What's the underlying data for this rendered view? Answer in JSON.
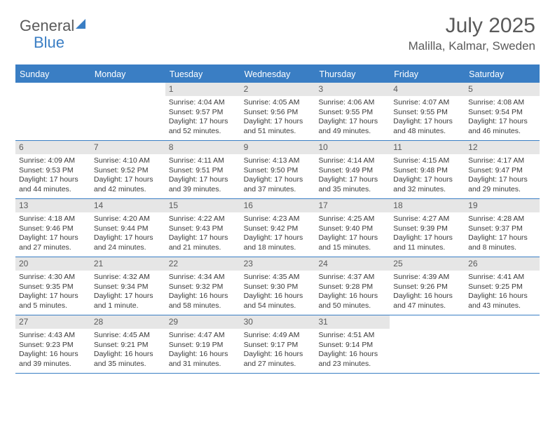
{
  "brand": {
    "part1": "General",
    "part2": "Blue"
  },
  "title": "July 2025",
  "location": "Malilla, Kalmar, Sweden",
  "colors": {
    "accent": "#3a7ec4",
    "header_text": "#ffffff",
    "daynum_bg": "#e6e6e6",
    "body_text": "#3a3a3a",
    "muted_text": "#5a5a5a",
    "background": "#ffffff"
  },
  "fonts": {
    "title_size_pt": 22,
    "location_size_pt": 13,
    "dayhead_size_pt": 9,
    "cell_size_pt": 8
  },
  "day_headers": [
    "Sunday",
    "Monday",
    "Tuesday",
    "Wednesday",
    "Thursday",
    "Friday",
    "Saturday"
  ],
  "weeks": [
    [
      {
        "n": "",
        "sr": "",
        "ss": "",
        "dl": ""
      },
      {
        "n": "",
        "sr": "",
        "ss": "",
        "dl": ""
      },
      {
        "n": "1",
        "sr": "Sunrise: 4:04 AM",
        "ss": "Sunset: 9:57 PM",
        "dl": "Daylight: 17 hours and 52 minutes."
      },
      {
        "n": "2",
        "sr": "Sunrise: 4:05 AM",
        "ss": "Sunset: 9:56 PM",
        "dl": "Daylight: 17 hours and 51 minutes."
      },
      {
        "n": "3",
        "sr": "Sunrise: 4:06 AM",
        "ss": "Sunset: 9:55 PM",
        "dl": "Daylight: 17 hours and 49 minutes."
      },
      {
        "n": "4",
        "sr": "Sunrise: 4:07 AM",
        "ss": "Sunset: 9:55 PM",
        "dl": "Daylight: 17 hours and 48 minutes."
      },
      {
        "n": "5",
        "sr": "Sunrise: 4:08 AM",
        "ss": "Sunset: 9:54 PM",
        "dl": "Daylight: 17 hours and 46 minutes."
      }
    ],
    [
      {
        "n": "6",
        "sr": "Sunrise: 4:09 AM",
        "ss": "Sunset: 9:53 PM",
        "dl": "Daylight: 17 hours and 44 minutes."
      },
      {
        "n": "7",
        "sr": "Sunrise: 4:10 AM",
        "ss": "Sunset: 9:52 PM",
        "dl": "Daylight: 17 hours and 42 minutes."
      },
      {
        "n": "8",
        "sr": "Sunrise: 4:11 AM",
        "ss": "Sunset: 9:51 PM",
        "dl": "Daylight: 17 hours and 39 minutes."
      },
      {
        "n": "9",
        "sr": "Sunrise: 4:13 AM",
        "ss": "Sunset: 9:50 PM",
        "dl": "Daylight: 17 hours and 37 minutes."
      },
      {
        "n": "10",
        "sr": "Sunrise: 4:14 AM",
        "ss": "Sunset: 9:49 PM",
        "dl": "Daylight: 17 hours and 35 minutes."
      },
      {
        "n": "11",
        "sr": "Sunrise: 4:15 AM",
        "ss": "Sunset: 9:48 PM",
        "dl": "Daylight: 17 hours and 32 minutes."
      },
      {
        "n": "12",
        "sr": "Sunrise: 4:17 AM",
        "ss": "Sunset: 9:47 PM",
        "dl": "Daylight: 17 hours and 29 minutes."
      }
    ],
    [
      {
        "n": "13",
        "sr": "Sunrise: 4:18 AM",
        "ss": "Sunset: 9:46 PM",
        "dl": "Daylight: 17 hours and 27 minutes."
      },
      {
        "n": "14",
        "sr": "Sunrise: 4:20 AM",
        "ss": "Sunset: 9:44 PM",
        "dl": "Daylight: 17 hours and 24 minutes."
      },
      {
        "n": "15",
        "sr": "Sunrise: 4:22 AM",
        "ss": "Sunset: 9:43 PM",
        "dl": "Daylight: 17 hours and 21 minutes."
      },
      {
        "n": "16",
        "sr": "Sunrise: 4:23 AM",
        "ss": "Sunset: 9:42 PM",
        "dl": "Daylight: 17 hours and 18 minutes."
      },
      {
        "n": "17",
        "sr": "Sunrise: 4:25 AM",
        "ss": "Sunset: 9:40 PM",
        "dl": "Daylight: 17 hours and 15 minutes."
      },
      {
        "n": "18",
        "sr": "Sunrise: 4:27 AM",
        "ss": "Sunset: 9:39 PM",
        "dl": "Daylight: 17 hours and 11 minutes."
      },
      {
        "n": "19",
        "sr": "Sunrise: 4:28 AM",
        "ss": "Sunset: 9:37 PM",
        "dl": "Daylight: 17 hours and 8 minutes."
      }
    ],
    [
      {
        "n": "20",
        "sr": "Sunrise: 4:30 AM",
        "ss": "Sunset: 9:35 PM",
        "dl": "Daylight: 17 hours and 5 minutes."
      },
      {
        "n": "21",
        "sr": "Sunrise: 4:32 AM",
        "ss": "Sunset: 9:34 PM",
        "dl": "Daylight: 17 hours and 1 minute."
      },
      {
        "n": "22",
        "sr": "Sunrise: 4:34 AM",
        "ss": "Sunset: 9:32 PM",
        "dl": "Daylight: 16 hours and 58 minutes."
      },
      {
        "n": "23",
        "sr": "Sunrise: 4:35 AM",
        "ss": "Sunset: 9:30 PM",
        "dl": "Daylight: 16 hours and 54 minutes."
      },
      {
        "n": "24",
        "sr": "Sunrise: 4:37 AM",
        "ss": "Sunset: 9:28 PM",
        "dl": "Daylight: 16 hours and 50 minutes."
      },
      {
        "n": "25",
        "sr": "Sunrise: 4:39 AM",
        "ss": "Sunset: 9:26 PM",
        "dl": "Daylight: 16 hours and 47 minutes."
      },
      {
        "n": "26",
        "sr": "Sunrise: 4:41 AM",
        "ss": "Sunset: 9:25 PM",
        "dl": "Daylight: 16 hours and 43 minutes."
      }
    ],
    [
      {
        "n": "27",
        "sr": "Sunrise: 4:43 AM",
        "ss": "Sunset: 9:23 PM",
        "dl": "Daylight: 16 hours and 39 minutes."
      },
      {
        "n": "28",
        "sr": "Sunrise: 4:45 AM",
        "ss": "Sunset: 9:21 PM",
        "dl": "Daylight: 16 hours and 35 minutes."
      },
      {
        "n": "29",
        "sr": "Sunrise: 4:47 AM",
        "ss": "Sunset: 9:19 PM",
        "dl": "Daylight: 16 hours and 31 minutes."
      },
      {
        "n": "30",
        "sr": "Sunrise: 4:49 AM",
        "ss": "Sunset: 9:17 PM",
        "dl": "Daylight: 16 hours and 27 minutes."
      },
      {
        "n": "31",
        "sr": "Sunrise: 4:51 AM",
        "ss": "Sunset: 9:14 PM",
        "dl": "Daylight: 16 hours and 23 minutes."
      },
      {
        "n": "",
        "sr": "",
        "ss": "",
        "dl": ""
      },
      {
        "n": "",
        "sr": "",
        "ss": "",
        "dl": ""
      }
    ]
  ]
}
